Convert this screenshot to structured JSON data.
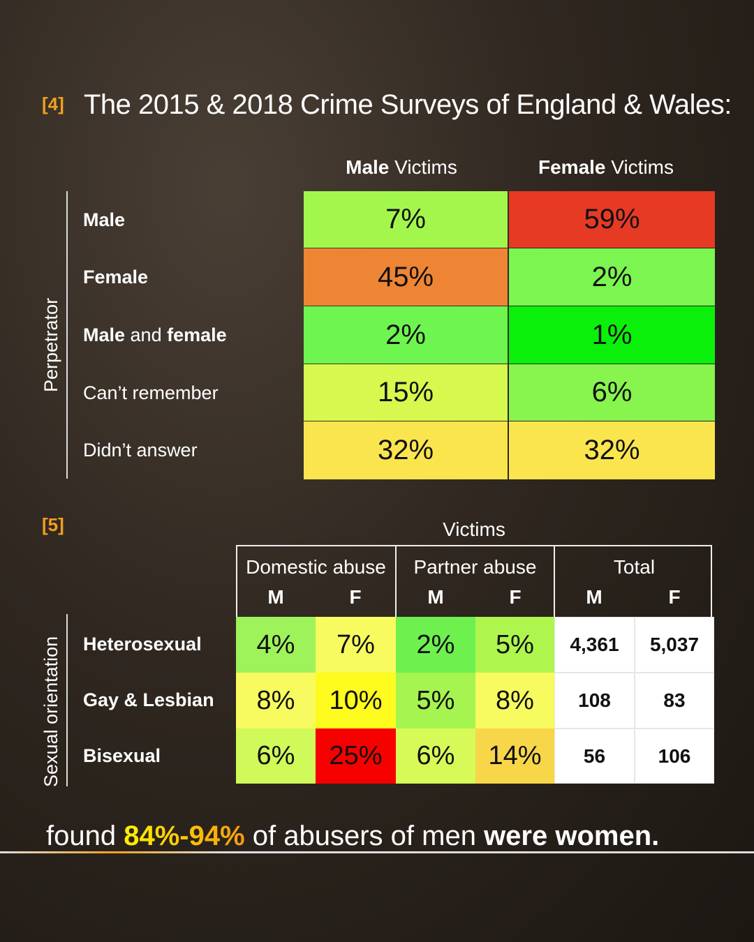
{
  "section4": {
    "ref": "[4]",
    "title": "The 2015 & 2018 Crime Surveys of England & Wales:",
    "col_headers": [
      {
        "bold": "Male",
        "rest": " Victims"
      },
      {
        "bold": "Female",
        "rest": " Victims"
      }
    ],
    "axis_label": "Perpetrator",
    "rows": [
      {
        "label": [
          {
            "t": "Male",
            "b": true
          }
        ]
      },
      {
        "label": [
          {
            "t": "Female",
            "b": true
          }
        ]
      },
      {
        "label": [
          {
            "t": "Male",
            "b": true
          },
          {
            "t": " and ",
            "b": false
          },
          {
            "t": "female",
            "b": true
          }
        ]
      },
      {
        "label": [
          {
            "t": "Can’t remember",
            "b": false
          }
        ]
      },
      {
        "label": [
          {
            "t": "Didn’t answer",
            "b": false
          }
        ]
      }
    ]
  },
  "section5": {
    "ref": "[5]",
    "victims_label": "Victims",
    "axis_label": "Sexual orientation",
    "groups": [
      "Domestic abuse",
      "Partner abuse",
      "Total"
    ],
    "sub": [
      "M",
      "F",
      "M",
      "F",
      "M",
      "F"
    ],
    "rows": [
      "Heterosexual",
      "Gay & Lesbian",
      "Bisexual"
    ]
  },
  "chart_data": [
    {
      "type": "heatmap",
      "columns": [
        "Male Victims",
        "Female Victims"
      ],
      "rows": [
        "Male",
        "Female",
        "Male and female",
        "Can’t remember",
        "Didn’t answer"
      ],
      "values": [
        [
          "7%",
          "59%"
        ],
        [
          "45%",
          "2%"
        ],
        [
          "2%",
          "1%"
        ],
        [
          "15%",
          "6%"
        ],
        [
          "32%",
          "32%"
        ]
      ],
      "colors": [
        [
          "#a3f74c",
          "#e63a25"
        ],
        [
          "#ee8535",
          "#7bf54f"
        ],
        [
          "#6ff550",
          "#0af00a"
        ],
        [
          "#d6f84f",
          "#88f44e"
        ],
        [
          "#fbe54f",
          "#fbe54f"
        ]
      ]
    },
    {
      "type": "table",
      "rows": [
        "Heterosexual",
        "Gay & Lesbian",
        "Bisexual"
      ],
      "values": [
        [
          "4%",
          "7%",
          "2%",
          "5%",
          "4,361",
          "5,037"
        ],
        [
          "8%",
          "10%",
          "5%",
          "8%",
          "108",
          "83"
        ],
        [
          "6%",
          "25%",
          "6%",
          "14%",
          "56",
          "106"
        ]
      ],
      "colors": [
        [
          "#9ef25a",
          "#f7fb60",
          "#6ef04f",
          "#aef64e",
          "#ffffff",
          "#ffffff"
        ],
        [
          "#f7fb5f",
          "#fefb1e",
          "#a5f44f",
          "#f7fb5f",
          "#ffffff",
          "#ffffff"
        ],
        [
          "#d0f95a",
          "#f60000",
          "#d8fa58",
          "#f7d64a",
          "#ffffff",
          "#ffffff"
        ]
      ]
    }
  ],
  "footer": {
    "pre": "found ",
    "highlight": "84%-94%",
    "mid": " of abusers of men ",
    "bold": "were women."
  }
}
